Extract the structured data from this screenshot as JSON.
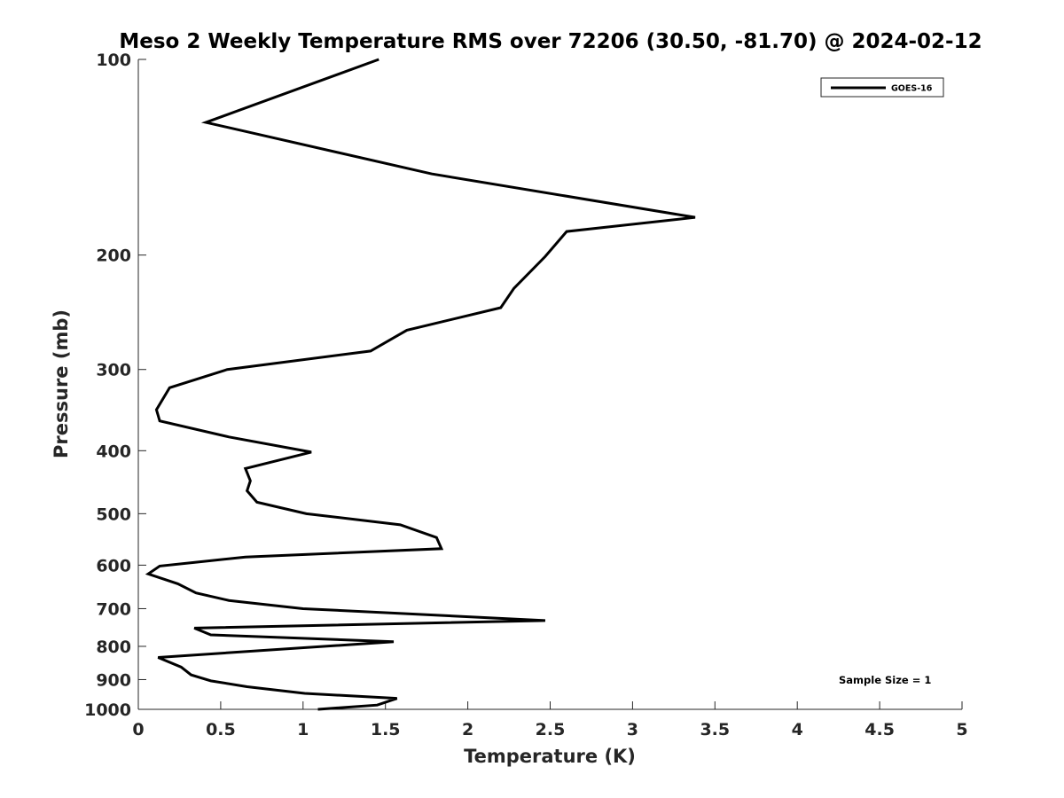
{
  "chart_data": {
    "type": "line",
    "title": "Meso 2 Weekly Temperature RMS over 72206 (30.50, -81.70) @ 2024-02-12",
    "xlabel": "Temperature (K)",
    "ylabel": "Pressure (mb)",
    "xlim": [
      0,
      5
    ],
    "ylim": [
      100,
      1000
    ],
    "y_scale": "log",
    "y_reversed": true,
    "grid": false,
    "legend_position": "top-right",
    "x_ticks": [
      "0",
      "0.5",
      "1",
      "1.5",
      "2",
      "2.5",
      "3",
      "3.5",
      "4",
      "4.5",
      "5"
    ],
    "y_ticks": [
      "100",
      "200",
      "300",
      "400",
      "500",
      "600",
      "700",
      "800",
      "900",
      "1000"
    ],
    "annotation": "Sample Size = 1",
    "series": [
      {
        "name": "GOES-16",
        "color": "#000000",
        "points": [
          [
            1.46,
            100
          ],
          [
            0.41,
            125
          ],
          [
            1.78,
            150
          ],
          [
            3.38,
            175
          ],
          [
            2.6,
            184
          ],
          [
            2.47,
            201
          ],
          [
            2.28,
            225
          ],
          [
            2.2,
            241
          ],
          [
            1.63,
            261
          ],
          [
            1.41,
            281
          ],
          [
            0.54,
            300
          ],
          [
            0.19,
            320
          ],
          [
            0.11,
            346
          ],
          [
            0.13,
            360
          ],
          [
            0.55,
            381
          ],
          [
            1.05,
            402
          ],
          [
            0.65,
            426
          ],
          [
            0.68,
            445
          ],
          [
            0.66,
            461
          ],
          [
            0.72,
            480
          ],
          [
            1.02,
            500
          ],
          [
            1.59,
            520
          ],
          [
            1.81,
            544
          ],
          [
            1.84,
            566
          ],
          [
            0.65,
            583
          ],
          [
            0.13,
            602
          ],
          [
            0.06,
            619
          ],
          [
            0.24,
            641
          ],
          [
            0.35,
            662
          ],
          [
            0.55,
            680
          ],
          [
            1.0,
            700
          ],
          [
            2.47,
            730
          ],
          [
            0.34,
            750
          ],
          [
            0.44,
            768
          ],
          [
            1.55,
            787
          ],
          [
            0.12,
            832
          ],
          [
            0.26,
            861
          ],
          [
            0.32,
            885
          ],
          [
            0.44,
            904
          ],
          [
            0.66,
            923
          ],
          [
            1.01,
            945
          ],
          [
            1.57,
            962
          ],
          [
            1.45,
            985
          ],
          [
            1.09,
            1000
          ]
        ]
      }
    ]
  }
}
